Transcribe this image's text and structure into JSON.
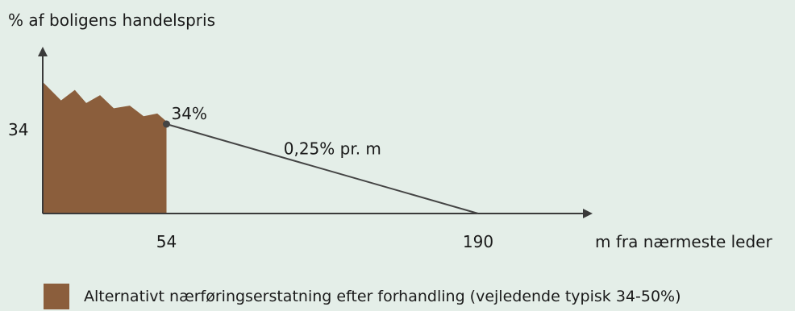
{
  "chart_data": {
    "type": "area",
    "ylabel": "% af boligens handelspris",
    "xlabel": "m fra nærmeste leder",
    "y_ticks": [
      "34"
    ],
    "x_ticks": [
      "54",
      "190"
    ],
    "line": {
      "x": [
        54,
        190
      ],
      "y": [
        34,
        0
      ],
      "point_label": "34%",
      "slope_label": "0,25% pr. m"
    },
    "area_series": {
      "name": "Alternativt nærføringserstatning efter forhandling (vejledende typisk 34-50%)",
      "x": [
        0,
        8,
        14,
        19,
        25,
        31,
        38,
        44,
        50,
        54
      ],
      "y": [
        50,
        43,
        47,
        42,
        45,
        40,
        41,
        37,
        38,
        35
      ],
      "color": "#8b5e3c"
    },
    "xlim": [
      0,
      190
    ],
    "ylim": [
      0,
      50
    ]
  }
}
